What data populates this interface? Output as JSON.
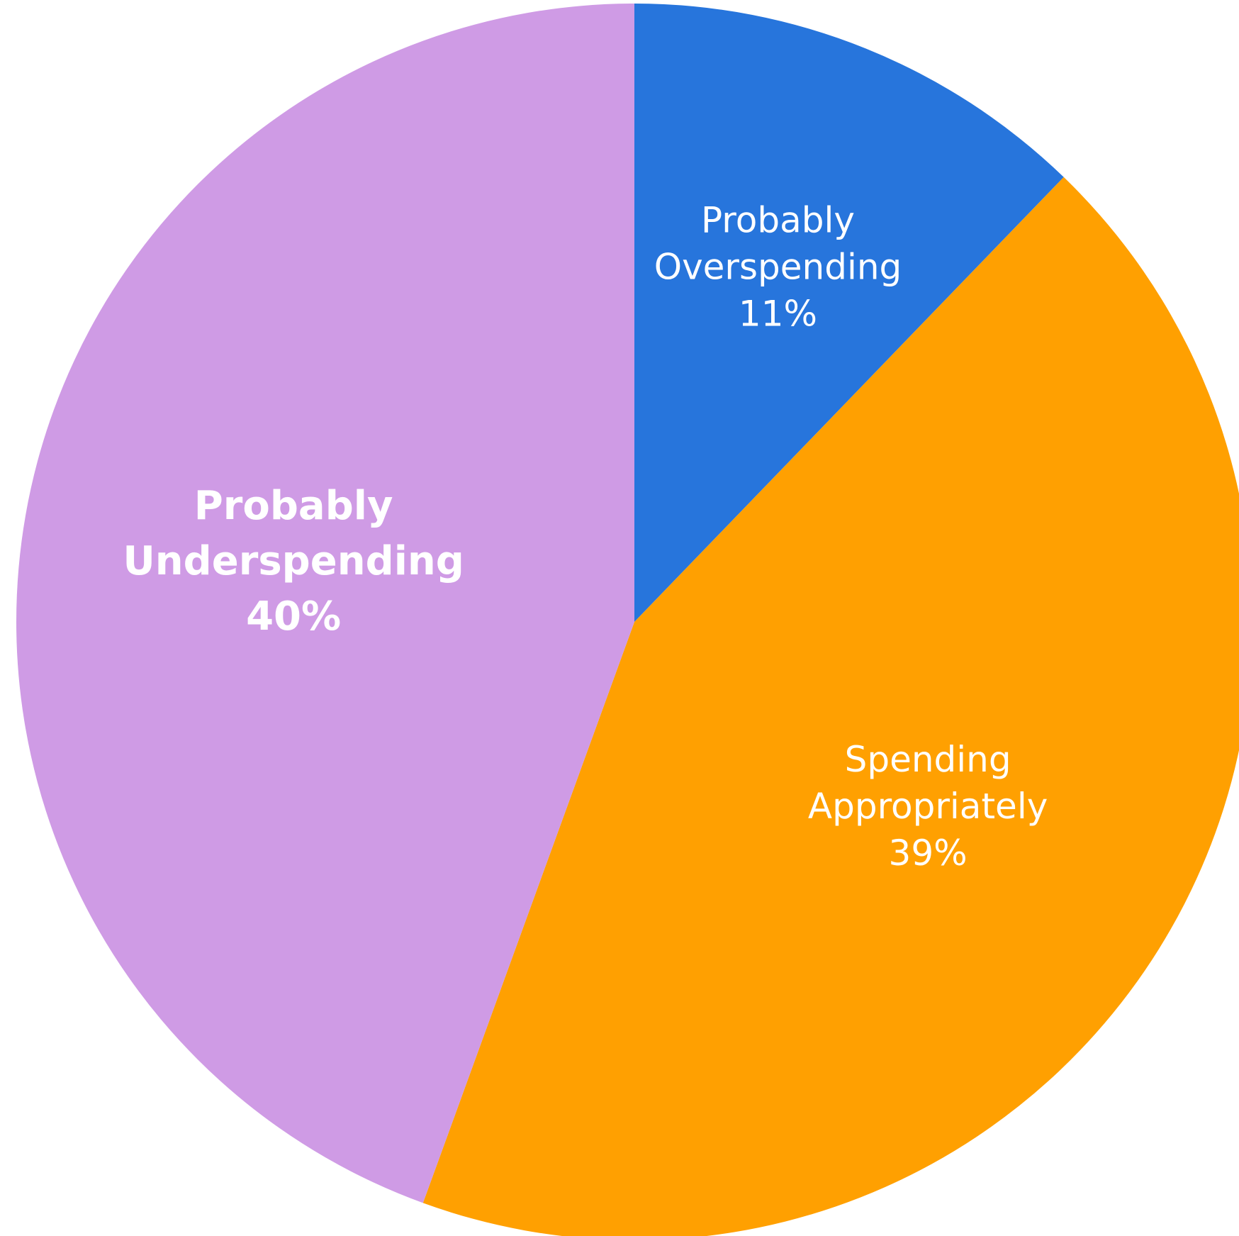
{
  "chart_data": {
    "type": "pie",
    "start_angle": "12 o'clock",
    "direction": "clockwise",
    "slices": [
      {
        "label": [
          "Probably",
          "Overspending"
        ],
        "percent_label": "11%",
        "value": 11,
        "color": "#2775DC",
        "emphasis": false
      },
      {
        "label": [
          "Spending",
          "Appropriately"
        ],
        "percent_label": "39%",
        "value": 39,
        "color": "#FFA001",
        "emphasis": false
      },
      {
        "label": [
          "Probably",
          "Underspending"
        ],
        "percent_label": "40%",
        "value": 40,
        "color": "#CF9BE5",
        "emphasis": true
      }
    ]
  }
}
